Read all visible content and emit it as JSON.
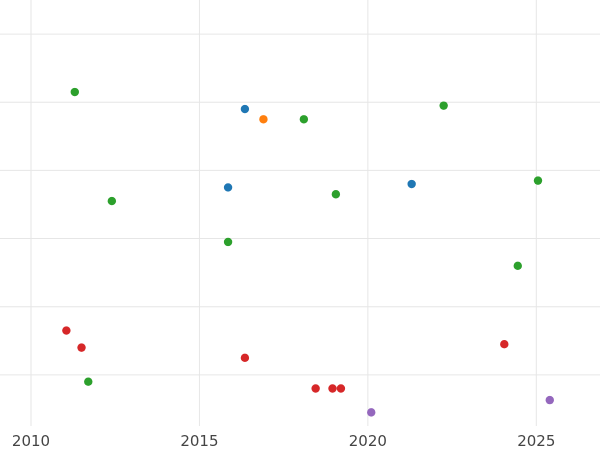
{
  "chart_data": {
    "type": "scatter",
    "title": "",
    "xlabel": "",
    "ylabel": "",
    "xlim": [
      2009.6,
      2026.9
    ],
    "ylim": [
      0,
      6.25
    ],
    "x_ticks": [
      2010,
      2015,
      2020,
      2025
    ],
    "x_tick_labels": [
      "2010",
      "2015",
      "2020",
      "2025"
    ],
    "y_grid": [
      0.75,
      1.75,
      2.75,
      3.75,
      4.75,
      5.75
    ],
    "grid": true,
    "legend": "none",
    "series": [
      {
        "color": "#2ca02c",
        "points": [
          {
            "x": 2011.3,
            "y": 4.9
          },
          {
            "x": 2012.4,
            "y": 3.3
          },
          {
            "x": 2011.7,
            "y": 0.65
          },
          {
            "x": 2015.85,
            "y": 2.7
          },
          {
            "x": 2018.1,
            "y": 4.5
          },
          {
            "x": 2019.05,
            "y": 3.4
          },
          {
            "x": 2022.25,
            "y": 4.7
          },
          {
            "x": 2025.05,
            "y": 3.6
          },
          {
            "x": 2024.45,
            "y": 2.35
          }
        ]
      },
      {
        "color": "#1f77b4",
        "points": [
          {
            "x": 2016.35,
            "y": 4.65
          },
          {
            "x": 2015.85,
            "y": 3.5
          },
          {
            "x": 2021.3,
            "y": 3.55
          }
        ]
      },
      {
        "color": "#ff7f0e",
        "points": [
          {
            "x": 2016.9,
            "y": 4.5
          }
        ]
      },
      {
        "color": "#d62728",
        "points": [
          {
            "x": 2011.05,
            "y": 1.4
          },
          {
            "x": 2011.5,
            "y": 1.15
          },
          {
            "x": 2016.35,
            "y": 1.0
          },
          {
            "x": 2018.45,
            "y": 0.55
          },
          {
            "x": 2018.95,
            "y": 0.55
          },
          {
            "x": 2019.2,
            "y": 0.55
          },
          {
            "x": 2024.05,
            "y": 1.2
          }
        ]
      },
      {
        "color": "#9467bd",
        "points": [
          {
            "x": 2020.1,
            "y": 0.2
          },
          {
            "x": 2025.4,
            "y": 0.38
          }
        ]
      }
    ]
  }
}
